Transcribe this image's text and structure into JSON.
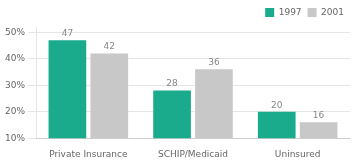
{
  "chart_data": {
    "type": "bar",
    "categories": [
      "Private Insurance",
      "SCHIP/Medicaid",
      "Uninsured"
    ],
    "series": [
      {
        "name": "1997",
        "color": "#1aaa8c",
        "values": [
          47,
          28,
          20
        ]
      },
      {
        "name": "2001",
        "color": "#c8c8c8",
        "values": [
          42,
          36,
          16
        ]
      }
    ],
    "ylim": [
      10,
      52
    ],
    "yticks": [
      {
        "value": 10,
        "label": "10%"
      },
      {
        "value": 20,
        "label": "20%"
      },
      {
        "value": 30,
        "label": "30%"
      },
      {
        "value": 40,
        "label": "40%"
      },
      {
        "value": 50,
        "label": "50%"
      }
    ],
    "grid": true,
    "legend": "upper right",
    "data_labels": true
  }
}
